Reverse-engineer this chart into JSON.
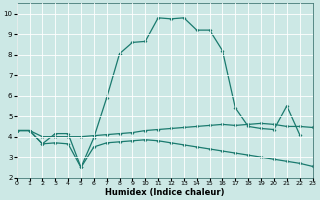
{
  "title": "",
  "xlabel": "Humidex (Indice chaleur)",
  "xlim": [
    0,
    23
  ],
  "ylim": [
    2,
    10.5
  ],
  "yticks": [
    2,
    3,
    4,
    5,
    6,
    7,
    8,
    9,
    10
  ],
  "xticks": [
    0,
    1,
    2,
    3,
    4,
    5,
    6,
    7,
    8,
    9,
    10,
    11,
    12,
    13,
    14,
    15,
    16,
    17,
    18,
    19,
    20,
    21,
    22,
    23
  ],
  "bg_color": "#cce8e5",
  "line_color": "#1a7a6e",
  "grid_color": "#b0d8d4",
  "line1_x": [
    0,
    1,
    2,
    3,
    4,
    5,
    6,
    7,
    8,
    9,
    10,
    11,
    12,
    13,
    14,
    15,
    16,
    17,
    18,
    19,
    20,
    21,
    22
  ],
  "line1_y": [
    4.3,
    4.3,
    3.65,
    4.15,
    4.15,
    2.5,
    3.95,
    5.9,
    8.05,
    8.6,
    8.65,
    9.8,
    9.75,
    9.8,
    9.2,
    9.2,
    8.2,
    5.4,
    4.5,
    4.4,
    4.35,
    5.5,
    4.1
  ],
  "line2_x": [
    0,
    1,
    2,
    3,
    4,
    5,
    6,
    7,
    8,
    9,
    10,
    11,
    12,
    13,
    14,
    15,
    16,
    17,
    18,
    19,
    20,
    21,
    22,
    23
  ],
  "line2_y": [
    4.3,
    4.3,
    4.0,
    4.0,
    4.0,
    4.0,
    4.05,
    4.1,
    4.15,
    4.2,
    4.3,
    4.35,
    4.4,
    4.45,
    4.5,
    4.55,
    4.6,
    4.55,
    4.6,
    4.65,
    4.6,
    4.5,
    4.5,
    4.45
  ],
  "line3_x": [
    0,
    1,
    2,
    3,
    4,
    5,
    6,
    7,
    8,
    9,
    10,
    11,
    12,
    13,
    14,
    15,
    16,
    17,
    18,
    19,
    20,
    21,
    22,
    23
  ],
  "line3_y": [
    4.3,
    4.3,
    3.65,
    3.7,
    3.65,
    2.5,
    3.5,
    3.7,
    3.75,
    3.8,
    3.85,
    3.8,
    3.7,
    3.6,
    3.5,
    3.4,
    3.3,
    3.2,
    3.1,
    3.0,
    2.9,
    2.8,
    2.7,
    2.55
  ]
}
